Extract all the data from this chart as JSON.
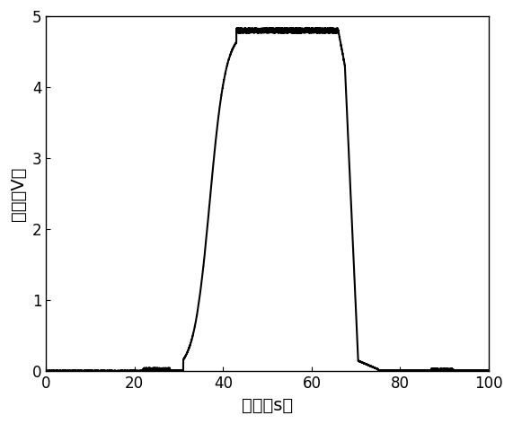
{
  "title": "",
  "xlabel": "时间（s）",
  "ylabel": "电压（V）",
  "xlim": [
    0,
    100
  ],
  "ylim": [
    0,
    5
  ],
  "xticks": [
    0,
    20,
    40,
    60,
    80,
    100
  ],
  "yticks": [
    0,
    1,
    2,
    3,
    4,
    5
  ],
  "line_color": "#000000",
  "line_width": 1.5,
  "background_color": "#ffffff",
  "xlabel_fontsize": 14,
  "ylabel_fontsize": 14,
  "tick_fontsize": 12,
  "rise_start": 31.0,
  "rise_mid": 36.0,
  "plateau_start": 43.0,
  "plateau_end": 66.0,
  "fall_mid": 70.0,
  "fall_end": 75.0,
  "plateau_value": 4.8
}
